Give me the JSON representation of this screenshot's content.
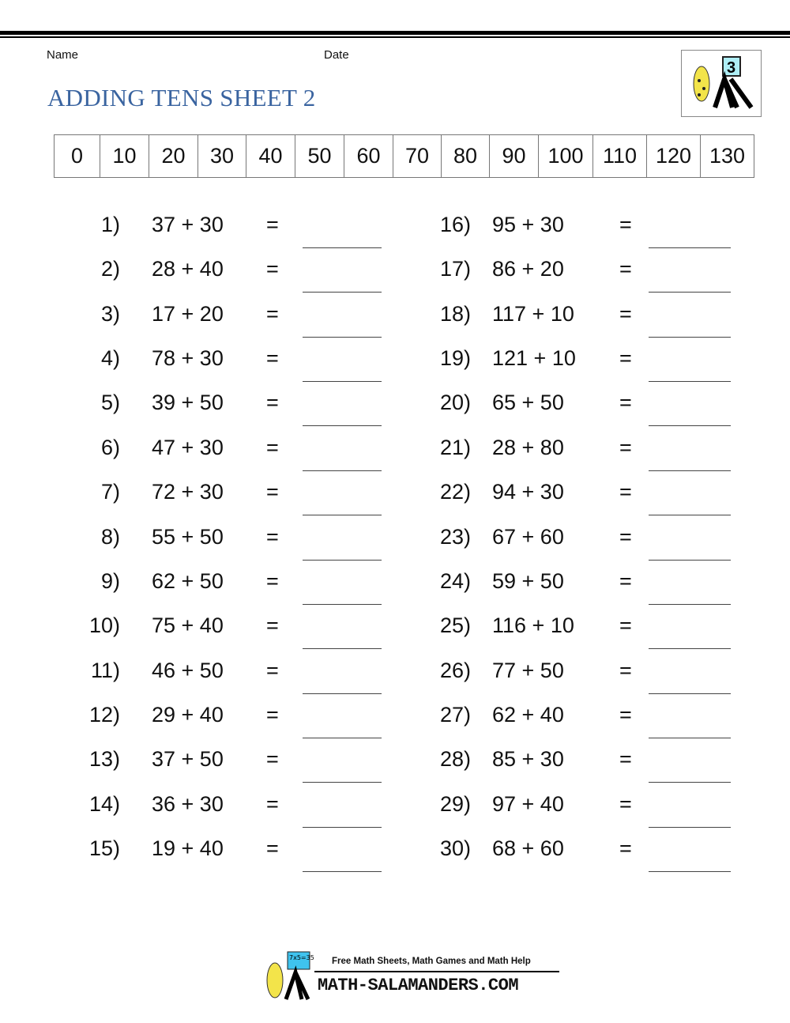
{
  "header": {
    "name_label": "Name",
    "date_label": "Date",
    "title": "ADDING TENS SHEET 2",
    "logo_badge": "3"
  },
  "number_line": [
    "0",
    "10",
    "20",
    "30",
    "40",
    "50",
    "60",
    "70",
    "80",
    "90",
    "100",
    "110",
    "120",
    "130"
  ],
  "problems": [
    {
      "n": "1)",
      "q": "37 + 30"
    },
    {
      "n": "2)",
      "q": "28 + 40"
    },
    {
      "n": "3)",
      "q": "17 + 20"
    },
    {
      "n": "4)",
      "q": "78 + 30"
    },
    {
      "n": "5)",
      "q": "39 + 50"
    },
    {
      "n": "6)",
      "q": "47 + 30"
    },
    {
      "n": "7)",
      "q": "72 + 30"
    },
    {
      "n": "8)",
      "q": "55 + 50"
    },
    {
      "n": "9)",
      "q": "62 + 50"
    },
    {
      "n": "10)",
      "q": "75 + 40"
    },
    {
      "n": "11)",
      "q": "46 + 50"
    },
    {
      "n": "12)",
      "q": "29 + 40"
    },
    {
      "n": "13)",
      "q": "37 + 50"
    },
    {
      "n": "14)",
      "q": "36 + 30"
    },
    {
      "n": "15)",
      "q": "19 + 40"
    },
    {
      "n": "16)",
      "q": "95 + 30"
    },
    {
      "n": "17)",
      "q": "86 + 20"
    },
    {
      "n": "18)",
      "q": "117 + 10"
    },
    {
      "n": "19)",
      "q": "121 + 10"
    },
    {
      "n": "20)",
      "q": "65 + 50"
    },
    {
      "n": "21)",
      "q": "28 + 80"
    },
    {
      "n": "22)",
      "q": "94 + 30"
    },
    {
      "n": "23)",
      "q": "67 + 60"
    },
    {
      "n": "24)",
      "q": "59 + 50"
    },
    {
      "n": "25)",
      "q": "116 + 10"
    },
    {
      "n": "26)",
      "q": "77 + 50"
    },
    {
      "n": "27)",
      "q": "62 + 40"
    },
    {
      "n": "28)",
      "q": "85 + 30"
    },
    {
      "n": "29)",
      "q": "97 + 40"
    },
    {
      "n": "30)",
      "q": "68 + 60"
    }
  ],
  "equals": "=",
  "footer": {
    "tagline": "Free Math Sheets, Math Games and Math Help",
    "brand": "MATH-SALAMANDERS.COM",
    "logo_badge": "7x5=35"
  },
  "colors": {
    "title": "#3a64a0",
    "badge": "#aeeef5"
  }
}
